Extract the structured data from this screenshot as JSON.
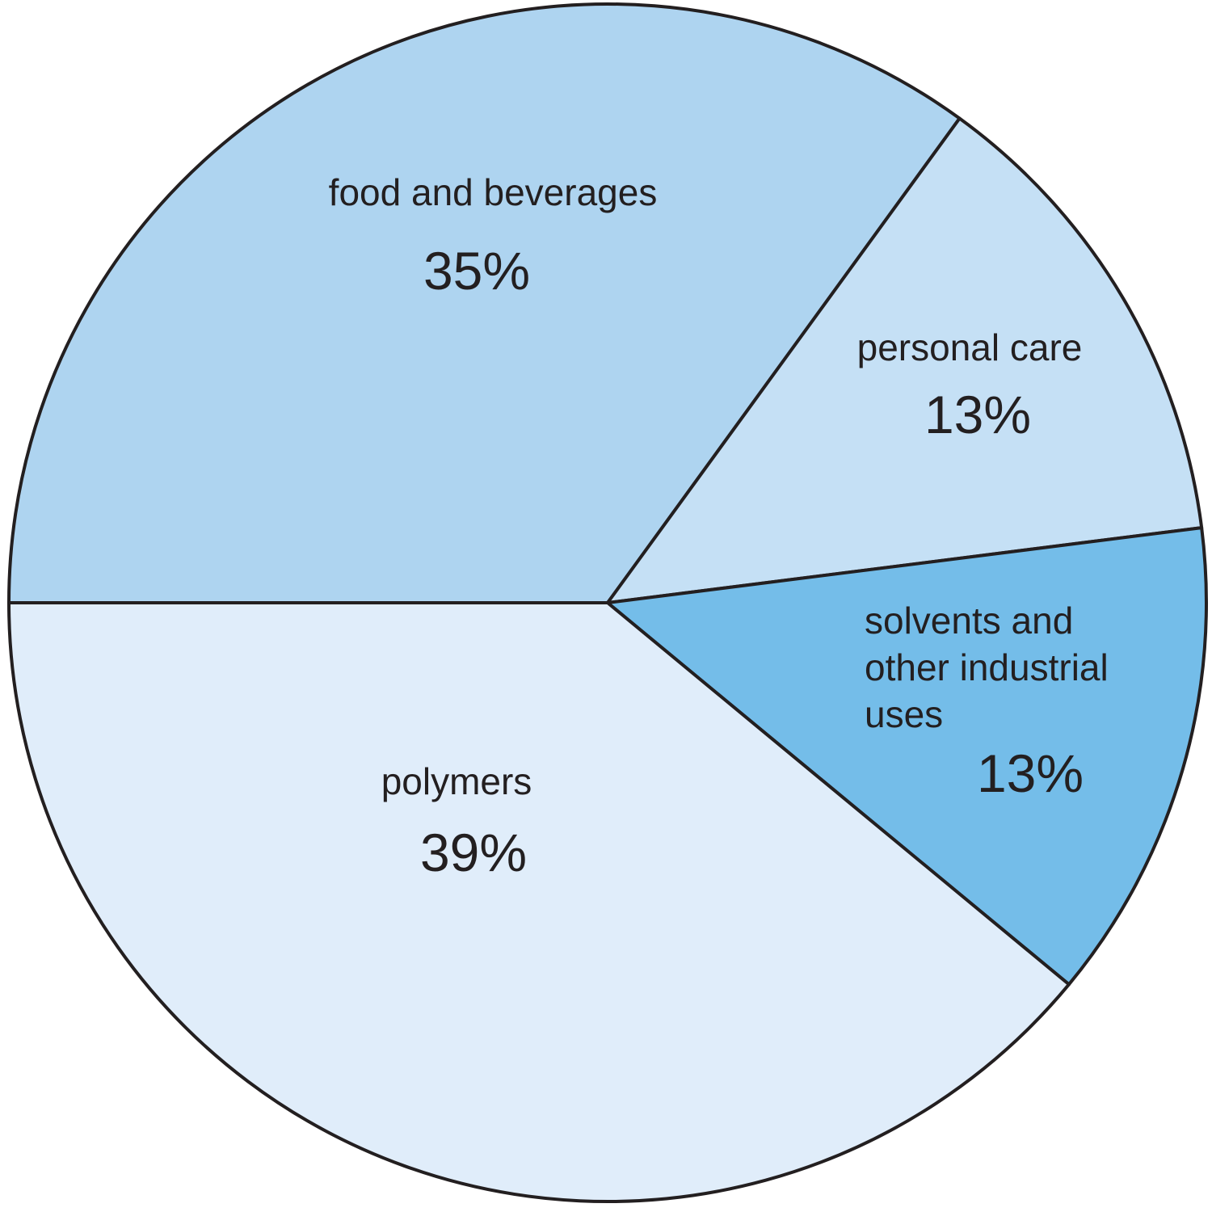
{
  "chart_data": {
    "type": "pie",
    "categories": [
      "food and beverages",
      "personal care",
      "solvents and other industrial uses",
      "polymers"
    ],
    "values": [
      35,
      13,
      13,
      39
    ],
    "value_labels": [
      "35%",
      "13%",
      "13%",
      "39%"
    ],
    "colors": [
      "#aed4f0",
      "#c5e0f5",
      "#74bde9",
      "#e0edfa"
    ]
  }
}
